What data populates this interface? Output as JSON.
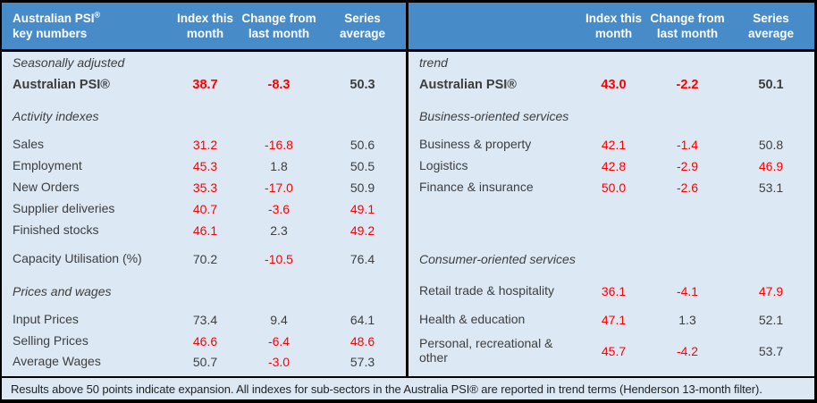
{
  "colors": {
    "header_bg": "#478cc8",
    "body_bg": "#dce9f5",
    "negative_red": "#fe0000",
    "text_dark": "#3d3d3d",
    "header_text": "#ffffff",
    "border_black": "#000000"
  },
  "header": {
    "left_title_line1": "Australian PSI",
    "left_title_sup": "®",
    "left_title_line2": "key numbers",
    "columns": [
      "Index this month",
      "Change from last month",
      "Series average"
    ]
  },
  "footer": {
    "note": "Results above 50 points indicate expansion. All indexes for sub-sectors in the Australia PSI® are reported in trend terms (Henderson 13-month filter)."
  },
  "chart_data": {
    "type": "table",
    "title": "Australian PSI® key numbers",
    "columns": [
      "Index this month",
      "Change from last month",
      "Series average"
    ],
    "left": {
      "rows": [
        {
          "label": "Seasonally adjusted"
        },
        {
          "label": "Australian PSI®",
          "values": [
            "38.7",
            "-8.3",
            "50.3"
          ],
          "value_colors": [
            "red",
            "red",
            "dark"
          ]
        },
        {
          "label": "Activity indexes"
        },
        {
          "label": "Sales",
          "values": [
            "31.2",
            "-16.8",
            "50.6"
          ],
          "value_colors": [
            "red",
            "red",
            "dark"
          ]
        },
        {
          "label": "Employment",
          "values": [
            "45.3",
            "1.8",
            "50.5"
          ],
          "value_colors": [
            "red",
            "dark",
            "dark"
          ]
        },
        {
          "label": "New Orders",
          "values": [
            "35.3",
            "-17.0",
            "50.9"
          ],
          "value_colors": [
            "red",
            "red",
            "dark"
          ]
        },
        {
          "label": "Supplier deliveries",
          "values": [
            "40.7",
            "-3.6",
            "49.1"
          ],
          "value_colors": [
            "red",
            "red",
            "red"
          ]
        },
        {
          "label": "Finished stocks",
          "values": [
            "46.1",
            "2.3",
            "49.2"
          ],
          "value_colors": [
            "red",
            "dark",
            "red"
          ]
        },
        {
          "label": "Capacity Utilisation (%)",
          "values": [
            "70.2",
            "-10.5",
            "76.4"
          ],
          "value_colors": [
            "dark",
            "red",
            "dark"
          ]
        },
        {
          "label": "Prices and wages"
        },
        {
          "label": "Input Prices",
          "values": [
            "73.4",
            "9.4",
            "64.1"
          ],
          "value_colors": [
            "dark",
            "dark",
            "dark"
          ]
        },
        {
          "label": "Selling Prices",
          "values": [
            "46.6",
            "-6.4",
            "48.6"
          ],
          "value_colors": [
            "red",
            "red",
            "red"
          ]
        },
        {
          "label": "Average Wages",
          "values": [
            "50.7",
            "-3.0",
            "57.3"
          ],
          "value_colors": [
            "dark",
            "red",
            "dark"
          ]
        }
      ]
    },
    "right": {
      "rows": [
        {
          "label": "trend"
        },
        {
          "label": "Australian PSI®",
          "values": [
            "43.0",
            "-2.2",
            "50.1"
          ],
          "value_colors": [
            "red",
            "red",
            "dark"
          ]
        },
        {
          "label": "Business-oriented services"
        },
        {
          "label": "Business & property",
          "values": [
            "42.1",
            "-1.4",
            "50.8"
          ],
          "value_colors": [
            "red",
            "red",
            "dark"
          ]
        },
        {
          "label": "Logistics",
          "values": [
            "42.8",
            "-2.9",
            "46.9"
          ],
          "value_colors": [
            "red",
            "red",
            "red"
          ]
        },
        {
          "label": "Finance & insurance",
          "values": [
            "50.0",
            "-2.6",
            "53.1"
          ],
          "value_colors": [
            "red",
            "red",
            "dark"
          ]
        },
        {
          "label": "Consumer-oriented services"
        },
        {
          "label": "Retail trade & hospitality",
          "values": [
            "36.1",
            "-4.1",
            "47.9"
          ],
          "value_colors": [
            "red",
            "red",
            "red"
          ]
        },
        {
          "label": "Health & education",
          "values": [
            "47.1",
            "1.3",
            "52.1"
          ],
          "value_colors": [
            "red",
            "dark",
            "dark"
          ]
        },
        {
          "label": "Personal, recreational & other",
          "values": [
            "45.7",
            "-4.2",
            "53.7"
          ],
          "value_colors": [
            "red",
            "red",
            "dark"
          ]
        }
      ]
    }
  }
}
